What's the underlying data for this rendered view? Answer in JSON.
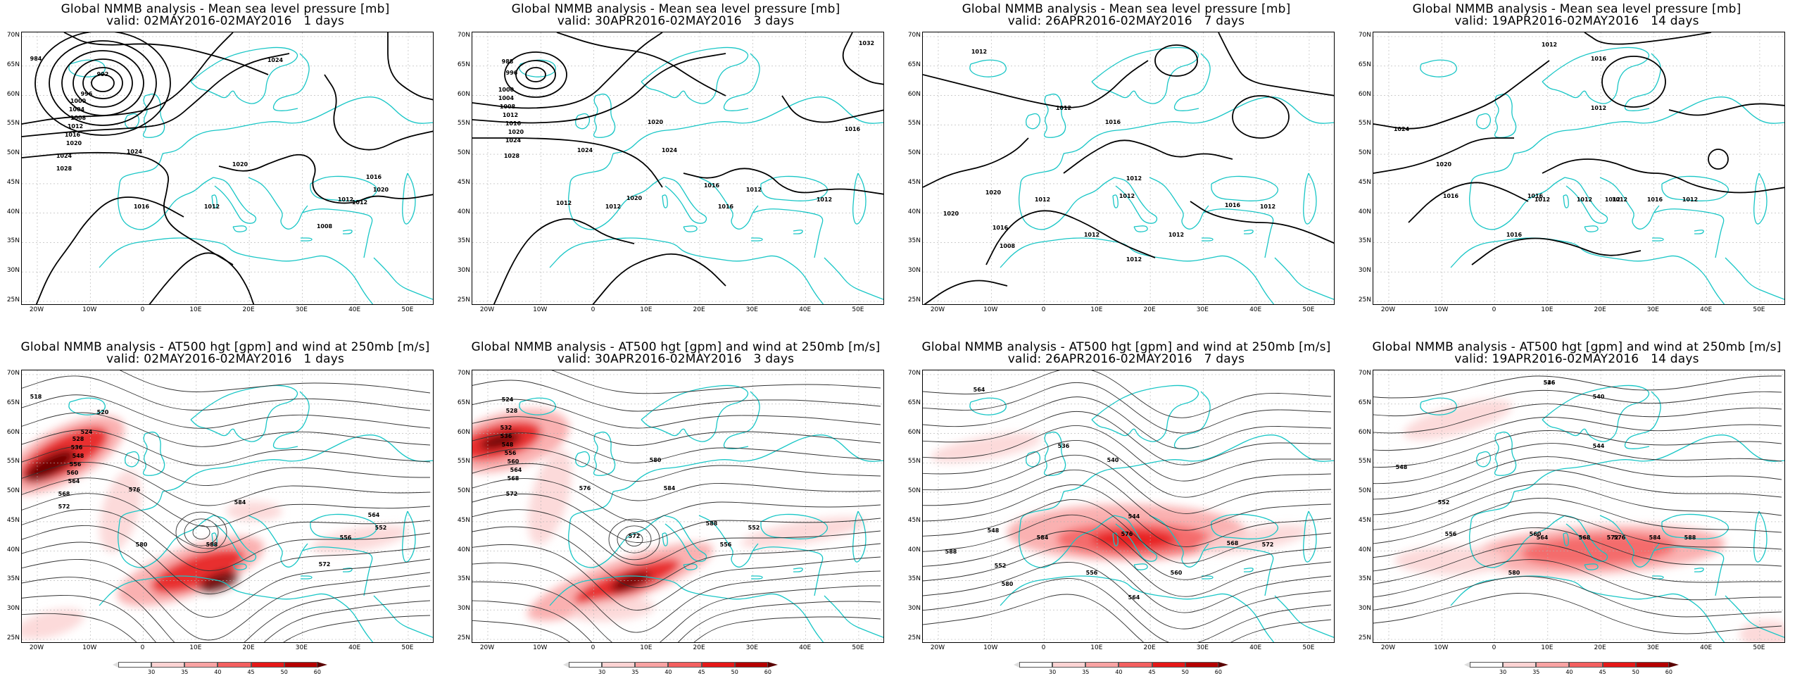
{
  "colors": {
    "coast": "#19c6c6",
    "contour": "#000000",
    "grid": "#b0b0b0",
    "wind_scale": [
      "#ffffff",
      "#fcd3d3",
      "#f9a3a3",
      "#f36060",
      "#e51818",
      "#b50000",
      "#5a0000"
    ]
  },
  "lat_labels": [
    "70N",
    "65N",
    "60N",
    "55N",
    "50N",
    "45N",
    "40N",
    "35N",
    "30N",
    "25N"
  ],
  "lon_labels": [
    "20W",
    "10W",
    "0",
    "10E",
    "20E",
    "30E",
    "40E",
    "50E"
  ],
  "colorbar_ticks": [
    "30",
    "35",
    "40",
    "45",
    "50",
    "60"
  ],
  "panels": [
    {
      "title": "Global NMMB analysis - Mean sea level pressure [mb]",
      "valid": "valid: 02MAY2016-02MAY2016   1 days",
      "kind": "mslp",
      "contour_labels": [
        "984",
        "992",
        "996",
        "1000",
        "1004",
        "1008",
        "1012",
        "1016",
        "1020",
        "1024",
        "1028",
        "1024",
        "1016",
        "1020",
        "1012",
        "1020",
        "1012",
        "1016",
        "1008",
        "1012",
        "1024"
      ]
    },
    {
      "title": "Global NMMB analysis - Mean sea level pressure [mb]",
      "valid": "valid: 30APR2016-02MAY2016   3 days",
      "kind": "mslp",
      "contour_labels": [
        "988",
        "996",
        "1000",
        "1004",
        "1008",
        "1012",
        "1016",
        "1020",
        "1024",
        "1028",
        "1024",
        "1020",
        "1024",
        "1016",
        "1012",
        "1016",
        "1020",
        "1012",
        "1012",
        "1012",
        "1016",
        "1032"
      ]
    },
    {
      "title": "Global NMMB analysis - Mean sea level pressure [mb]",
      "valid": "valid: 26APR2016-02MAY2016   7 days",
      "kind": "mslp",
      "contour_labels": [
        "1012",
        "1012",
        "1016",
        "1012",
        "1020",
        "1016",
        "1012",
        "1012",
        "1012",
        "1016",
        "1012",
        "1012",
        "1008",
        "1012",
        "1020"
      ]
    },
    {
      "title": "Global NMMB analysis - Mean sea level pressure [mb]",
      "valid": "valid: 19APR2016-02MAY2016   14 days",
      "kind": "mslp",
      "contour_labels": [
        "1012",
        "1016",
        "1012",
        "1024",
        "1020",
        "1016",
        "1016",
        "1012",
        "1012",
        "1012",
        "1012",
        "1016",
        "1016",
        "1012"
      ]
    },
    {
      "title": "Global NMMB analysis - AT500 hgt [gpm] and wind at 250mb [m/s]",
      "valid": "valid: 02MAY2016-02MAY2016   1 days",
      "kind": "z500",
      "contour_labels": [
        "518",
        "520",
        "524",
        "528",
        "536",
        "548",
        "556",
        "560",
        "564",
        "568",
        "572",
        "576",
        "580",
        "584",
        "588",
        "552",
        "556",
        "564",
        "572"
      ]
    },
    {
      "title": "Global NMMB analysis - AT500 hgt [gpm] and wind at 250mb [m/s]",
      "valid": "valid: 30APR2016-02MAY2016   3 days",
      "kind": "z500",
      "contour_labels": [
        "524",
        "528",
        "532",
        "536",
        "548",
        "556",
        "560",
        "564",
        "568",
        "572",
        "576",
        "580",
        "584",
        "588",
        "552",
        "556",
        "572"
      ]
    },
    {
      "title": "Global NMMB analysis - AT500 hgt [gpm] and wind at 250mb [m/s]",
      "valid": "valid: 26APR2016-02MAY2016   7 days",
      "kind": "z500",
      "contour_labels": [
        "564",
        "536",
        "540",
        "544",
        "548",
        "552",
        "556",
        "560",
        "564",
        "568",
        "572",
        "576",
        "580",
        "584",
        "588"
      ]
    },
    {
      "title": "Global NMMB analysis - AT500 hgt [gpm] and wind at 250mb [m/s]",
      "valid": "valid: 19APR2016-02MAY2016   14 days",
      "kind": "z500",
      "contour_labels": [
        "536",
        "540",
        "544",
        "548",
        "552",
        "556",
        "560",
        "564",
        "568",
        "572",
        "576",
        "580",
        "584",
        "588",
        "546"
      ]
    }
  ],
  "chart_data": [
    {
      "type": "heatmap",
      "title": "Global NMMB analysis - Mean sea level pressure [mb]",
      "subtitle": "valid: 02MAY2016-02MAY2016   1 days",
      "units": "mb",
      "lon_range": [
        "25W",
        "55E"
      ],
      "lat_range": [
        "25N",
        "70N"
      ],
      "contour_levels": [
        984,
        992,
        996,
        1000,
        1004,
        1008,
        1012,
        1016,
        1020,
        1024,
        1028
      ]
    },
    {
      "type": "heatmap",
      "title": "Global NMMB analysis - Mean sea level pressure [mb]",
      "subtitle": "valid: 30APR2016-02MAY2016   3 days",
      "units": "mb",
      "lon_range": [
        "25W",
        "55E"
      ],
      "lat_range": [
        "25N",
        "70N"
      ],
      "contour_levels": [
        988,
        996,
        1000,
        1004,
        1008,
        1012,
        1016,
        1020,
        1024,
        1028,
        1032
      ]
    },
    {
      "type": "heatmap",
      "title": "Global NMMB analysis - Mean sea level pressure [mb]",
      "subtitle": "valid: 26APR2016-02MAY2016   7 days",
      "units": "mb",
      "lon_range": [
        "25W",
        "55E"
      ],
      "lat_range": [
        "25N",
        "70N"
      ],
      "contour_levels": [
        1008,
        1012,
        1016,
        1020
      ]
    },
    {
      "type": "heatmap",
      "title": "Global NMMB analysis - Mean sea level pressure [mb]",
      "subtitle": "valid: 19APR2016-02MAY2016   14 days",
      "units": "mb",
      "lon_range": [
        "25W",
        "55E"
      ],
      "lat_range": [
        "25N",
        "70N"
      ],
      "contour_levels": [
        1012,
        1016,
        1020,
        1024
      ]
    },
    {
      "type": "heatmap",
      "title": "Global NMMB analysis - AT500 hgt [gpm] and wind at 250mb [m/s]",
      "subtitle": "valid: 02MAY2016-02MAY2016   1 days",
      "units": "gpm / m/s",
      "lon_range": [
        "25W",
        "55E"
      ],
      "lat_range": [
        "25N",
        "70N"
      ],
      "contour_levels": [
        518,
        520,
        524,
        528,
        536,
        548,
        552,
        556,
        560,
        564,
        568,
        572,
        576,
        580,
        584,
        588
      ],
      "wind_shading_levels": [
        30,
        35,
        40,
        45,
        50,
        60
      ]
    },
    {
      "type": "heatmap",
      "title": "Global NMMB analysis - AT500 hgt [gpm] and wind at 250mb [m/s]",
      "subtitle": "valid: 30APR2016-02MAY2016   3 days",
      "units": "gpm / m/s",
      "lon_range": [
        "25W",
        "55E"
      ],
      "lat_range": [
        "25N",
        "70N"
      ],
      "contour_levels": [
        524,
        528,
        532,
        536,
        548,
        552,
        556,
        560,
        564,
        568,
        572,
        576,
        580,
        584,
        588
      ],
      "wind_shading_levels": [
        30,
        35,
        40,
        45,
        50,
        60
      ]
    },
    {
      "type": "heatmap",
      "title": "Global NMMB analysis - AT500 hgt [gpm] and wind at 250mb [m/s]",
      "subtitle": "valid: 26APR2016-02MAY2016   7 days",
      "units": "gpm / m/s",
      "lon_range": [
        "25W",
        "55E"
      ],
      "lat_range": [
        "25N",
        "70N"
      ],
      "contour_levels": [
        536,
        540,
        544,
        548,
        552,
        556,
        560,
        564,
        568,
        572,
        576,
        580,
        584,
        588
      ],
      "wind_shading_levels": [
        30,
        35,
        40,
        45,
        50,
        60
      ]
    },
    {
      "type": "heatmap",
      "title": "Global NMMB analysis - AT500 hgt [gpm] and wind at 250mb [m/s]",
      "subtitle": "valid: 19APR2016-02MAY2016   14 days",
      "units": "gpm / m/s",
      "lon_range": [
        "25W",
        "55E"
      ],
      "lat_range": [
        "25N",
        "70N"
      ],
      "contour_levels": [
        536,
        540,
        544,
        546,
        548,
        552,
        556,
        560,
        564,
        568,
        572,
        576,
        580,
        584,
        588
      ],
      "wind_shading_levels": [
        30,
        35,
        40,
        45,
        50,
        60
      ]
    }
  ]
}
